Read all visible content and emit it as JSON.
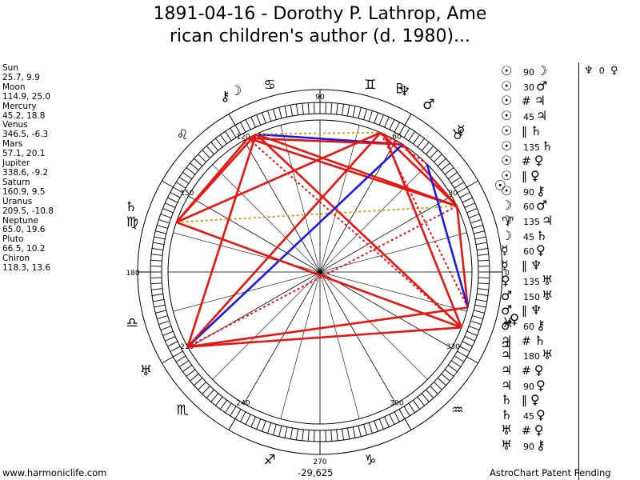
{
  "title": {
    "line1": "1891-04-16 - Dorothy P. Lathrop, Ame",
    "line2": "rican children's author (d. 1980)..."
  },
  "planets": [
    {
      "name": "Sun",
      "coords": "25.7, 9.9"
    },
    {
      "name": "Moon",
      "coords": "114.9, 25.0"
    },
    {
      "name": "Mercury",
      "coords": "45.2, 18.8"
    },
    {
      "name": "Venus",
      "coords": "346.5, -6.3"
    },
    {
      "name": "Mars",
      "coords": "57.1, 20.1"
    },
    {
      "name": "Jupiter",
      "coords": "338.6, -9.2"
    },
    {
      "name": "Saturn",
      "coords": "160.9, 9.5"
    },
    {
      "name": "Uranus",
      "coords": "209.5, -10.8"
    },
    {
      "name": "Neptune",
      "coords": "65.0, 19.6"
    },
    {
      "name": "Pluto",
      "coords": "66.5, 10.2"
    },
    {
      "name": "Chiron",
      "coords": "118.3, 13.6"
    }
  ],
  "wheel": {
    "degree_labels": [
      "90",
      "60",
      "30",
      "0",
      "330",
      "300",
      "270",
      "240",
      "210",
      "180",
      "150",
      "120"
    ],
    "zodiac": [
      {
        "glyph": "♈",
        "lon": 15
      },
      {
        "glyph": "♉",
        "lon": 45
      },
      {
        "glyph": "♊",
        "lon": 75
      },
      {
        "glyph": "♋",
        "lon": 105
      },
      {
        "glyph": "♌",
        "lon": 135
      },
      {
        "glyph": "♍",
        "lon": 165
      },
      {
        "glyph": "♎",
        "lon": 195
      },
      {
        "glyph": "♏",
        "lon": 225
      },
      {
        "glyph": "♐",
        "lon": 255
      },
      {
        "glyph": "♑",
        "lon": 285
      },
      {
        "glyph": "♒",
        "lon": 315
      },
      {
        "glyph": "♓",
        "lon": 345
      }
    ],
    "planet_glyphs": [
      {
        "glyph": "☉",
        "lon": 25.7
      },
      {
        "glyph": "☽",
        "lon": 114.9
      },
      {
        "glyph": "☿",
        "lon": 45.2
      },
      {
        "glyph": "♀",
        "lon": 346.5
      },
      {
        "glyph": "♂",
        "lon": 57.1
      },
      {
        "glyph": "♃",
        "lon": 338.6
      },
      {
        "glyph": "♄",
        "lon": 160.9
      },
      {
        "glyph": "♅",
        "lon": 209.5
      },
      {
        "glyph": "♆",
        "lon": 65.0
      },
      {
        "glyph": "♇",
        "lon": 66.5
      },
      {
        "glyph": "⚷",
        "lon": 118.3
      }
    ],
    "aspect_lines": [
      {
        "a": "Sun",
        "b": "Moon",
        "color": "#e8140f",
        "style": "solid"
      },
      {
        "a": "Sun",
        "b": "Mars",
        "color": "#e8140f",
        "style": "solid"
      },
      {
        "a": "Sun",
        "b": "Saturn",
        "color": "#d4a017",
        "style": "dotted"
      },
      {
        "a": "Sun",
        "b": "Chiron",
        "color": "#e8140f",
        "style": "solid"
      },
      {
        "a": "Sun",
        "b": "Venus",
        "color": "#e8140f",
        "style": "solid"
      },
      {
        "a": "Sun",
        "b": "Pluto",
        "color": "#e8140f",
        "style": "solid"
      },
      {
        "a": "Moon",
        "b": "Mars",
        "color": "#1a1ae8",
        "style": "solid"
      },
      {
        "a": "Moon",
        "b": "Jupiter",
        "color": "#e8140f",
        "style": "solid"
      },
      {
        "a": "Moon",
        "b": "Saturn",
        "color": "#e8140f",
        "style": "solid"
      },
      {
        "a": "Moon",
        "b": "Pluto",
        "color": "#d4a017",
        "style": "dotted"
      },
      {
        "a": "Mercury",
        "b": "Neptune",
        "color": "#e8140f",
        "style": "dotted"
      },
      {
        "a": "Mercury",
        "b": "Venus",
        "color": "#1a1ae8",
        "style": "solid"
      },
      {
        "a": "Venus",
        "b": "Uranus",
        "color": "#e8140f",
        "style": "solid"
      },
      {
        "a": "Mars",
        "b": "Uranus",
        "color": "#1a1ae8",
        "style": "solid"
      },
      {
        "a": "Mars",
        "b": "Chiron",
        "color": "#e8140f",
        "style": "solid"
      },
      {
        "a": "Jupiter",
        "b": "Saturn",
        "color": "#e8140f",
        "style": "solid"
      },
      {
        "a": "Jupiter",
        "b": "Uranus",
        "color": "#e8140f",
        "style": "solid"
      },
      {
        "a": "Jupiter",
        "b": "Chiron",
        "color": "#e8140f",
        "style": "dotted"
      },
      {
        "a": "Saturn",
        "b": "Pluto",
        "color": "#e8140f",
        "style": "solid"
      },
      {
        "a": "Saturn",
        "b": "Chiron",
        "color": "#e8140f",
        "style": "solid"
      },
      {
        "a": "Uranus",
        "b": "Pluto",
        "color": "#e8140f",
        "style": "solid"
      },
      {
        "a": "Uranus",
        "b": "Moon",
        "color": "#e8140f",
        "style": "solid"
      },
      {
        "a": "Jupiter",
        "b": "Neptune",
        "color": "#e8140f",
        "style": "solid"
      },
      {
        "a": "Venus",
        "b": "Pluto",
        "color": "#e8140f",
        "style": "dotted"
      },
      {
        "a": "Mars",
        "b": "Neptune",
        "color": "#e8140f",
        "style": "dotted"
      },
      {
        "a": "Sun",
        "b": "Uranus",
        "color": "#e8140f",
        "style": "dotted"
      }
    ]
  },
  "aspects": [
    {
      "p1": "☉",
      "sym": "",
      "num": "90",
      "p2": "☽"
    },
    {
      "p1": "☉",
      "sym": "",
      "num": "30",
      "p2": "♂"
    },
    {
      "p1": "☉",
      "sym": "#",
      "num": "",
      "p2": "♃"
    },
    {
      "p1": "☉",
      "sym": "",
      "num": "45",
      "p2": "♃"
    },
    {
      "p1": "☉",
      "sym": "‖",
      "num": "",
      "p2": "♄"
    },
    {
      "p1": "☉",
      "sym": "",
      "num": "135",
      "p2": "♄"
    },
    {
      "p1": "☉",
      "sym": "#",
      "num": "",
      "p2": "♀"
    },
    {
      "p1": "☉",
      "sym": "‖",
      "num": "",
      "p2": "♀"
    },
    {
      "p1": "☉",
      "sym": "",
      "num": "90",
      "p2": "⚷"
    },
    {
      "p1": "☽",
      "sym": "",
      "num": "60",
      "p2": "♂"
    },
    {
      "p1": "☽",
      "sym": "",
      "num": "135",
      "p2": "♃"
    },
    {
      "p1": "☽",
      "sym": "",
      "num": "45",
      "p2": "♄"
    },
    {
      "p1": "☿",
      "sym": "",
      "num": "60",
      "p2": "♀"
    },
    {
      "p1": "☿",
      "sym": "‖",
      "num": "",
      "p2": "♆"
    },
    {
      "p1": "♀",
      "sym": "",
      "num": "135",
      "p2": "♅"
    },
    {
      "p1": "♂",
      "sym": "",
      "num": "150",
      "p2": "♅"
    },
    {
      "p1": "♂",
      "sym": "‖",
      "num": "",
      "p2": "♆"
    },
    {
      "p1": "♂",
      "sym": "",
      "num": "60",
      "p2": "⚷"
    },
    {
      "p1": "♃",
      "sym": "#",
      "num": "",
      "p2": "♄"
    },
    {
      "p1": "♃",
      "sym": "",
      "num": "180",
      "p2": "♅"
    },
    {
      "p1": "♃",
      "sym": "#",
      "num": "",
      "p2": "♀"
    },
    {
      "p1": "♃",
      "sym": "",
      "num": "90",
      "p2": "♀"
    },
    {
      "p1": "♄",
      "sym": "‖",
      "num": "",
      "p2": "♀"
    },
    {
      "p1": "♄",
      "sym": "",
      "num": "45",
      "p2": "♀"
    },
    {
      "p1": "♅",
      "sym": "#",
      "num": "",
      "p2": "♀"
    },
    {
      "p1": "♅",
      "sym": "",
      "num": "90",
      "p2": "⚷"
    }
  ],
  "extra_aspect": {
    "p1": "♆",
    "num": "0",
    "p2": "♀"
  },
  "footer": {
    "site": "www.harmoniclife.com",
    "value": "-29,625",
    "patent": "AstroChart Patent Pending"
  }
}
